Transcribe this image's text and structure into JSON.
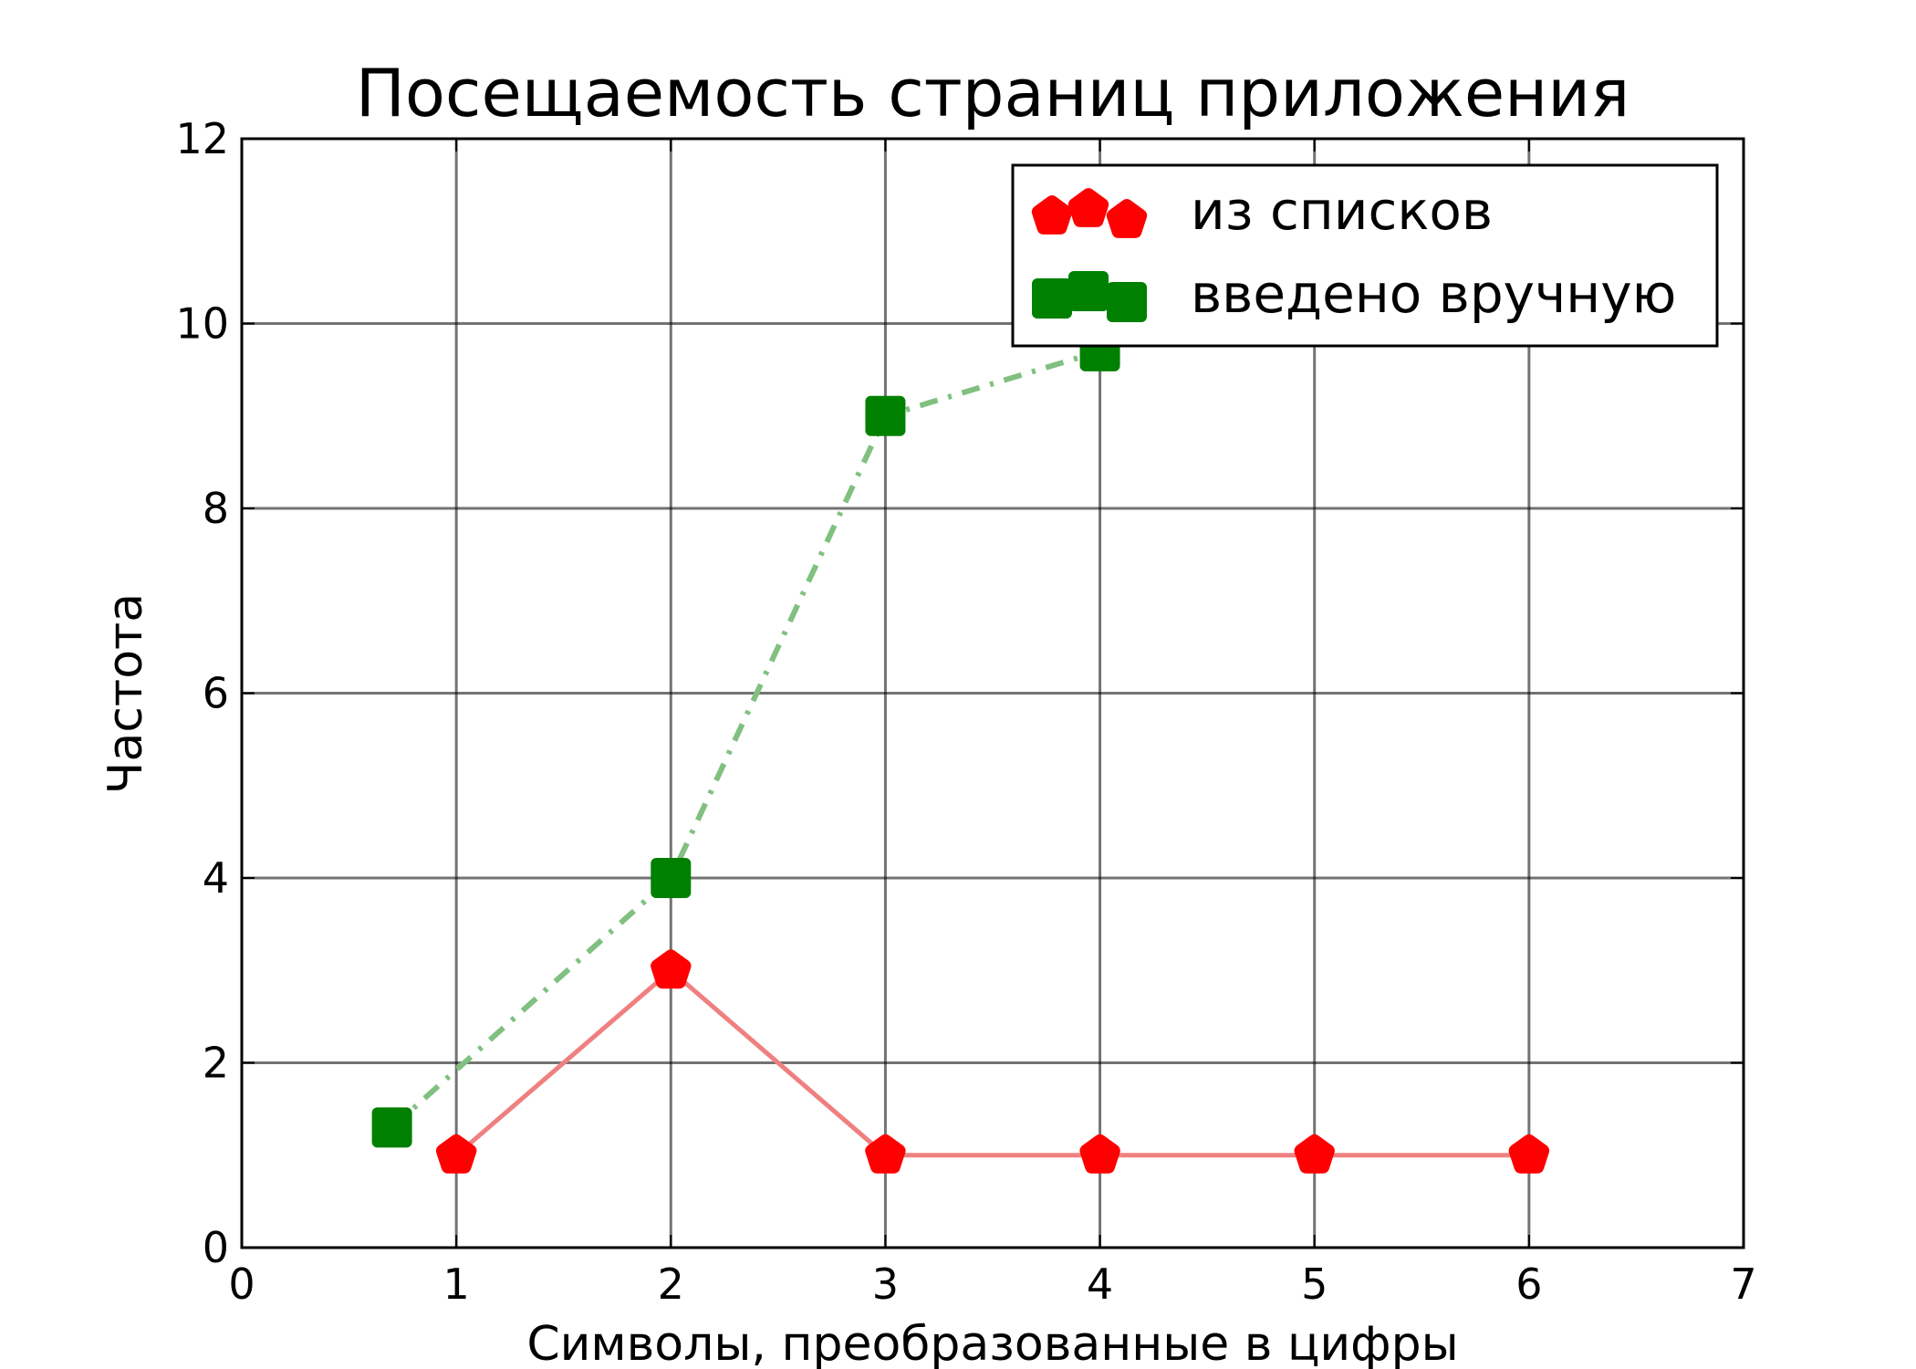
{
  "chart_data": {
    "type": "line",
    "title": "Посещаемость страниц приложения",
    "xlabel": "Символы, преобразованные в цифры",
    "ylabel": "Частота",
    "xlim": [
      0,
      7
    ],
    "ylim": [
      0,
      12
    ],
    "xticks": [
      "0",
      "1",
      "2",
      "3",
      "4",
      "5",
      "6",
      "7"
    ],
    "yticks": [
      "0",
      "2",
      "4",
      "6",
      "8",
      "10",
      "12"
    ],
    "grid": true,
    "legend_position": "top-right",
    "series": [
      {
        "name": "из списков",
        "color": "#ff0000",
        "line_color": "#f08080",
        "line_style": "solid",
        "marker": "pentagon",
        "x": [
          1,
          2,
          3,
          4,
          5,
          6
        ],
        "y": [
          1,
          3,
          1,
          1,
          1,
          1
        ]
      },
      {
        "name": "введено вручную",
        "color": "#008000",
        "line_color": "#80c080",
        "line_style": "dash-dot",
        "marker": "square",
        "x": [
          0.7,
          2,
          3,
          4
        ],
        "y": [
          1.3,
          4,
          9,
          9.7
        ]
      }
    ]
  }
}
